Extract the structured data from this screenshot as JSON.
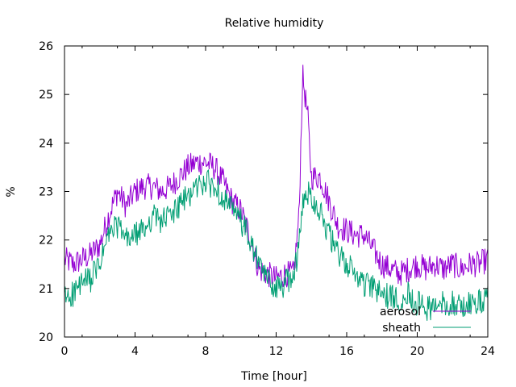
{
  "chart_data": {
    "type": "line",
    "title": "Relative humidity",
    "xlabel": "Time [hour]",
    "ylabel": "%",
    "xlim": [
      0,
      24
    ],
    "ylim": [
      20,
      26
    ],
    "xticks": [
      0,
      4,
      8,
      12,
      16,
      20,
      24
    ],
    "yticks": [
      20,
      21,
      22,
      23,
      24,
      25,
      26
    ],
    "grid": false,
    "legend_position": "bottom-right",
    "series": [
      {
        "name": "aerosol",
        "color": "#9400d3",
        "x": [
          0,
          0.5,
          1,
          1.5,
          2,
          2.5,
          3,
          3.5,
          4,
          4.5,
          5,
          5.5,
          6,
          6.5,
          7,
          7.5,
          8,
          8.5,
          9,
          9.5,
          10,
          10.5,
          11,
          11.5,
          12,
          12.5,
          13,
          13.3,
          13.5,
          13.8,
          14,
          14.5,
          15,
          15.5,
          16,
          16.5,
          17,
          17.5,
          18,
          18.5,
          19,
          19.5,
          20,
          20.5,
          21,
          21.5,
          22,
          22.5,
          23,
          23.5,
          24
        ],
        "y": [
          21.6,
          21.5,
          21.6,
          21.7,
          21.9,
          22.5,
          23.0,
          22.7,
          23.0,
          23.1,
          23.1,
          23.0,
          23.1,
          23.3,
          23.5,
          23.6,
          23.6,
          23.5,
          23.2,
          22.8,
          22.6,
          22.1,
          21.4,
          21.3,
          21.2,
          21.3,
          21.3,
          22.5,
          25.4,
          24.5,
          23.3,
          23.3,
          22.8,
          22.3,
          22.2,
          22.1,
          22.1,
          21.8,
          21.5,
          21.4,
          21.3,
          21.4,
          21.5,
          21.4,
          21.5,
          21.4,
          21.5,
          21.4,
          21.5,
          21.5,
          21.6
        ]
      },
      {
        "name": "sheath",
        "color": "#009e73",
        "x": [
          0,
          0.5,
          1,
          1.5,
          2,
          2.5,
          3,
          3.5,
          4,
          4.5,
          5,
          5.5,
          6,
          6.5,
          7,
          7.5,
          8,
          8.5,
          9,
          9.5,
          10,
          10.5,
          11,
          11.5,
          12,
          12.5,
          13,
          13.3,
          13.5,
          13.8,
          14,
          14.5,
          15,
          15.5,
          16,
          16.5,
          17,
          17.5,
          18,
          18.5,
          19,
          19.5,
          20,
          20.5,
          21,
          21.5,
          22,
          22.5,
          23,
          23.5,
          24
        ],
        "y": [
          20.8,
          20.9,
          21.1,
          21.2,
          21.5,
          22.1,
          22.3,
          22.0,
          22.1,
          22.2,
          22.5,
          22.4,
          22.5,
          22.7,
          22.9,
          23.1,
          23.2,
          23.1,
          22.9,
          22.6,
          22.4,
          22.0,
          21.5,
          21.2,
          21.0,
          21.1,
          21.3,
          21.9,
          22.7,
          23.0,
          22.9,
          22.6,
          22.1,
          21.7,
          21.5,
          21.3,
          21.1,
          21.0,
          20.9,
          20.8,
          20.8,
          20.9,
          20.7,
          20.6,
          20.6,
          20.7,
          20.7,
          20.6,
          20.7,
          20.7,
          20.8
        ]
      }
    ]
  }
}
